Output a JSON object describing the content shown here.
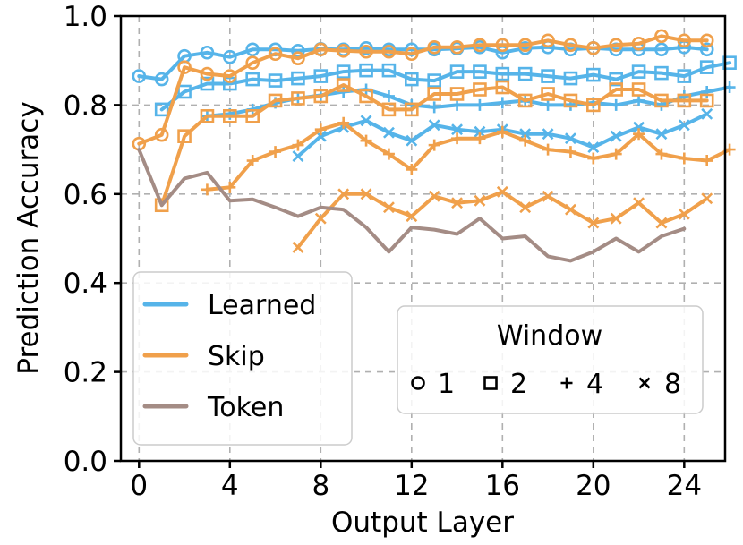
{
  "chart_data": {
    "type": "line",
    "xlabel": "Output Layer",
    "ylabel": "Prediction Accuracy",
    "xlim": [
      -0.8,
      25.8
    ],
    "ylim": [
      0.0,
      1.0
    ],
    "xticks": [
      0,
      4,
      8,
      12,
      16,
      20,
      24
    ],
    "yticks": [
      "0.0",
      "0.2",
      "0.4",
      "0.6",
      "0.8",
      "1.0"
    ],
    "grid": true,
    "colors": {
      "Learned": "#56b4e9",
      "Skip": "#f0a04b",
      "Token": "#a48c85"
    },
    "method_legend": {
      "placement": "middle-left",
      "entries": [
        "Learned",
        "Skip",
        "Token"
      ]
    },
    "window_legend": {
      "placement": "center-right",
      "title": "Window",
      "entries": [
        {
          "label": "1",
          "marker": "circle"
        },
        {
          "label": "2",
          "marker": "square"
        },
        {
          "label": "4",
          "marker": "plus"
        },
        {
          "label": "8",
          "marker": "x"
        }
      ]
    },
    "series": [
      {
        "name": "Learned, window 1",
        "method": "Learned",
        "marker": "circle",
        "start": 0,
        "values": [
          0.865,
          0.858,
          0.91,
          0.918,
          0.908,
          0.925,
          0.925,
          0.922,
          0.926,
          0.925,
          0.928,
          0.925,
          0.925,
          0.925,
          0.927,
          0.93,
          0.918,
          0.928,
          0.93,
          0.925,
          0.928,
          0.925,
          0.925,
          0.925,
          0.93,
          0.925
        ]
      },
      {
        "name": "Learned, window 2",
        "method": "Learned",
        "marker": "square",
        "start": 1,
        "values": [
          0.79,
          0.83,
          0.848,
          0.848,
          0.858,
          0.855,
          0.86,
          0.865,
          0.875,
          0.878,
          0.878,
          0.858,
          0.855,
          0.875,
          0.875,
          0.87,
          0.87,
          0.865,
          0.86,
          0.868,
          0.858,
          0.875,
          0.872,
          0.865,
          0.885,
          0.895
        ]
      },
      {
        "name": "Learned, window 4",
        "method": "Learned",
        "marker": "plus",
        "start": 3,
        "values": [
          0.775,
          0.78,
          0.79,
          0.805,
          0.815,
          0.822,
          0.83,
          0.835,
          0.82,
          0.8,
          0.795,
          0.8,
          0.8,
          0.805,
          0.81,
          0.8,
          0.8,
          0.805,
          0.8,
          0.81,
          0.8,
          0.82,
          0.83,
          0.84
        ]
      },
      {
        "name": "Learned, window 8",
        "method": "Learned",
        "marker": "x",
        "start": 7,
        "values": [
          0.685,
          0.73,
          0.75,
          0.765,
          0.738,
          0.72,
          0.755,
          0.745,
          0.74,
          0.745,
          0.735,
          0.735,
          0.725,
          0.705,
          0.73,
          0.75,
          0.735,
          0.755,
          0.78
        ]
      },
      {
        "name": "Skip, window 1",
        "method": "Skip",
        "marker": "circle",
        "start": 0,
        "values": [
          0.713,
          0.733,
          0.885,
          0.87,
          0.865,
          0.895,
          0.915,
          0.905,
          0.925,
          0.922,
          0.92,
          0.92,
          0.915,
          0.93,
          0.93,
          0.935,
          0.935,
          0.935,
          0.945,
          0.935,
          0.928,
          0.935,
          0.938,
          0.955,
          0.945,
          0.945
        ]
      },
      {
        "name": "Skip, window 2",
        "method": "Skip",
        "marker": "square",
        "start": 1,
        "values": [
          0.575,
          0.73,
          0.775,
          0.775,
          0.775,
          0.81,
          0.815,
          0.82,
          0.845,
          0.82,
          0.79,
          0.79,
          0.825,
          0.825,
          0.835,
          0.84,
          0.81,
          0.825,
          0.81,
          0.8,
          0.835,
          0.835,
          0.81,
          0.81,
          0.81
        ]
      },
      {
        "name": "Skip, window 4",
        "method": "Skip",
        "marker": "plus",
        "start": 3,
        "values": [
          0.61,
          0.615,
          0.675,
          0.695,
          0.71,
          0.745,
          0.76,
          0.72,
          0.69,
          0.655,
          0.71,
          0.725,
          0.725,
          0.74,
          0.72,
          0.7,
          0.695,
          0.68,
          0.69,
          0.735,
          0.69,
          0.68,
          0.675,
          0.7
        ]
      },
      {
        "name": "Skip, window 8",
        "method": "Skip",
        "marker": "x",
        "start": 7,
        "values": [
          0.48,
          0.545,
          0.6,
          0.6,
          0.57,
          0.55,
          0.595,
          0.58,
          0.585,
          0.605,
          0.57,
          0.595,
          0.565,
          0.535,
          0.545,
          0.58,
          0.535,
          0.555,
          0.59
        ]
      },
      {
        "name": "Token, no window",
        "method": "Token",
        "marker": "none",
        "start": 0,
        "values": [
          0.7,
          0.575,
          0.635,
          0.648,
          0.585,
          0.588,
          0.57,
          0.55,
          0.57,
          0.565,
          0.525,
          0.47,
          0.525,
          0.52,
          0.51,
          0.545,
          0.5,
          0.505,
          0.46,
          0.45,
          0.47,
          0.5,
          0.47,
          0.505,
          0.522
        ]
      }
    ]
  }
}
